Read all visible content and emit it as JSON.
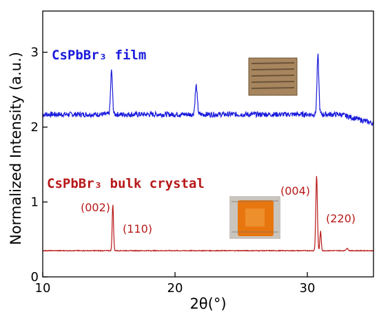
{
  "chart_data": {
    "type": "line",
    "xlabel": "2θ(°)",
    "ylabel": "Normalized Intensity (a.u.)",
    "xlim": [
      10,
      35
    ],
    "ylim": [
      0,
      3.55
    ],
    "x_ticks": [
      10,
      20,
      30
    ],
    "y_ticks": [
      0,
      1,
      2,
      3
    ],
    "x_tick_labels": [
      "10",
      "20",
      "30"
    ],
    "y_tick_labels": [
      "0",
      "1",
      "2",
      "3"
    ],
    "grid": false,
    "series": [
      {
        "name": "CsPbBr₃ film",
        "color": "#1a1adc",
        "baseline": 2.17,
        "noise": 0.035,
        "baseline_end": 2.05,
        "peaks": [
          {
            "x": 15.2,
            "height": 0.58,
            "width": 0.07
          },
          {
            "x": 21.6,
            "height": 0.38,
            "width": 0.08
          },
          {
            "x": 30.8,
            "height": 0.78,
            "width": 0.07
          }
        ]
      },
      {
        "name": "CsPbBr₃ bulk crystal",
        "color": "#b81818",
        "baseline": 0.35,
        "noise": 0.005,
        "baseline_end": 0.35,
        "peaks": [
          {
            "x": 15.3,
            "height": 0.62,
            "width": 0.05
          },
          {
            "x": 30.7,
            "height": 1.0,
            "width": 0.06
          },
          {
            "x": 31.0,
            "height": 0.26,
            "width": 0.05
          },
          {
            "x": 33.0,
            "height": 0.03,
            "width": 0.08
          }
        ]
      }
    ],
    "annotations": [
      {
        "text": "(002)",
        "x": 15.3
      },
      {
        "text": "(110)",
        "x": 17.3
      },
      {
        "text": "(004)",
        "x": 30.7
      },
      {
        "text": "(220)",
        "x": 31.1
      }
    ]
  },
  "colors": {
    "film": "#1a1adc",
    "crystal": "#b81818"
  }
}
